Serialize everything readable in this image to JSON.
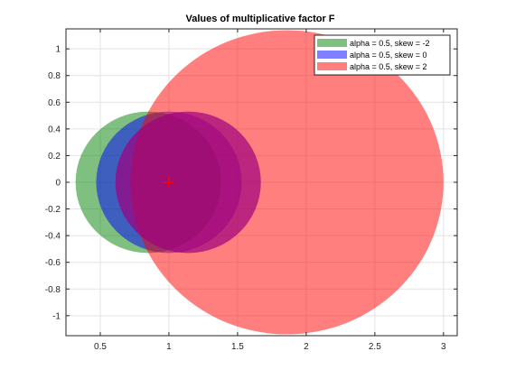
{
  "chart_data": {
    "type": "scatter",
    "title": "Values of multiplicative factor F",
    "xlabel": "",
    "ylabel": "",
    "xlim": [
      0.25,
      3.1
    ],
    "ylim": [
      -1.15,
      1.15
    ],
    "x_ticks": [
      0.5,
      1,
      1.5,
      2,
      2.5,
      3
    ],
    "x_tick_labels": [
      "0.5",
      "1",
      "1.5",
      "2",
      "2.5",
      "3"
    ],
    "y_ticks": [
      1,
      0.8,
      0.6,
      0.4,
      0.2,
      0,
      -0.2,
      -0.4,
      -0.6,
      -0.8,
      -1
    ],
    "y_tick_labels": [
      "1",
      "0.8",
      "0.6",
      "0.4",
      "0.2",
      "0",
      "-0.2",
      "-0.4",
      "-0.6",
      "-0.8",
      "-1"
    ],
    "grid": true,
    "legend_position": "top-right",
    "marker": {
      "x": 1,
      "y": 0,
      "symbol": "+",
      "color": "#ff0000"
    },
    "series": [
      {
        "name": "alpha = 0.5, skew = -2",
        "cx": 0.85,
        "cy": 0,
        "r": 0.53,
        "color": "#008000",
        "opacity": 0.5
      },
      {
        "name": "alpha = 0.5, skew = 0",
        "cx": 1.0,
        "cy": 0,
        "r": 0.53,
        "color": "#0000ff",
        "opacity": 0.5
      },
      {
        "name": "alpha = 0.5, skew = 2",
        "cx": 1.86,
        "cy": 0,
        "r": 1.14,
        "color": "#ff0000",
        "opacity": 0.5
      }
    ],
    "series_draw_order": [
      0,
      1,
      2
    ],
    "overlay_series": {
      "name": "alpha = 0.5, skew = 0",
      "cx": 1.14,
      "cy": 0,
      "r": 0.53,
      "color": "#a0007f",
      "opacity": 0.7
    }
  }
}
